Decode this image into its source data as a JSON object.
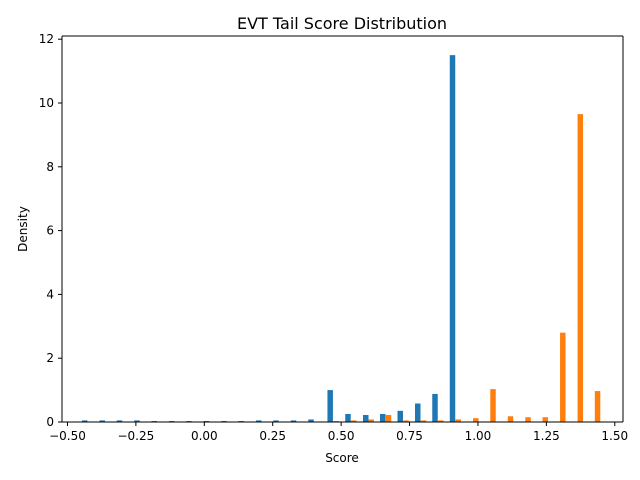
{
  "chart_data": {
    "type": "bar",
    "title": "EVT Tail Score Distribution",
    "xlabel": "Score",
    "ylabel": "Density",
    "xlim": [
      -0.52,
      1.53
    ],
    "ylim": [
      0,
      12.1
    ],
    "xticks": [
      "−0.50",
      "−0.25",
      "0.00",
      "0.25",
      "0.50",
      "0.75",
      "1.00",
      "1.25",
      "1.50"
    ],
    "xtick_values": [
      -0.5,
      -0.25,
      0,
      0.25,
      0.5,
      0.75,
      1.0,
      1.25,
      1.5
    ],
    "yticks": [
      "0",
      "2",
      "4",
      "6",
      "8",
      "10",
      "12"
    ],
    "ytick_values": [
      0,
      2,
      4,
      6,
      8,
      10,
      12
    ],
    "bar_width": 0.02,
    "grid": false,
    "series": [
      {
        "color": "#1f77b4",
        "points": [
          {
            "x": -0.437,
            "y": 0.05
          },
          {
            "x": -0.373,
            "y": 0.05
          },
          {
            "x": -0.31,
            "y": 0.05
          },
          {
            "x": -0.246,
            "y": 0.05
          },
          {
            "x": -0.183,
            "y": 0.03
          },
          {
            "x": -0.119,
            "y": 0.03
          },
          {
            "x": -0.056,
            "y": 0.03
          },
          {
            "x": 0.008,
            "y": 0.03
          },
          {
            "x": 0.072,
            "y": 0.03
          },
          {
            "x": 0.135,
            "y": 0.03
          },
          {
            "x": 0.199,
            "y": 0.05
          },
          {
            "x": 0.262,
            "y": 0.05
          },
          {
            "x": 0.326,
            "y": 0.05
          },
          {
            "x": 0.39,
            "y": 0.08
          },
          {
            "x": 0.46,
            "y": 1.0
          },
          {
            "x": 0.525,
            "y": 0.25
          },
          {
            "x": 0.59,
            "y": 0.22
          },
          {
            "x": 0.652,
            "y": 0.25
          },
          {
            "x": 0.716,
            "y": 0.35
          },
          {
            "x": 0.78,
            "y": 0.58
          },
          {
            "x": 0.843,
            "y": 0.88
          },
          {
            "x": 0.907,
            "y": 11.5
          }
        ]
      },
      {
        "color": "#ff7f0e",
        "points": [
          {
            "x": 0.482,
            "y": 0.03
          },
          {
            "x": 0.546,
            "y": 0.05
          },
          {
            "x": 0.61,
            "y": 0.08
          },
          {
            "x": 0.673,
            "y": 0.22
          },
          {
            "x": 0.737,
            "y": 0.05
          },
          {
            "x": 0.801,
            "y": 0.05
          },
          {
            "x": 0.864,
            "y": 0.05
          },
          {
            "x": 0.928,
            "y": 0.08
          },
          {
            "x": 0.992,
            "y": 0.12
          },
          {
            "x": 1.055,
            "y": 1.03
          },
          {
            "x": 1.119,
            "y": 0.18
          },
          {
            "x": 1.183,
            "y": 0.15
          },
          {
            "x": 1.246,
            "y": 0.15
          },
          {
            "x": 1.31,
            "y": 2.8
          },
          {
            "x": 1.374,
            "y": 9.65
          },
          {
            "x": 1.437,
            "y": 0.97
          }
        ]
      }
    ]
  }
}
